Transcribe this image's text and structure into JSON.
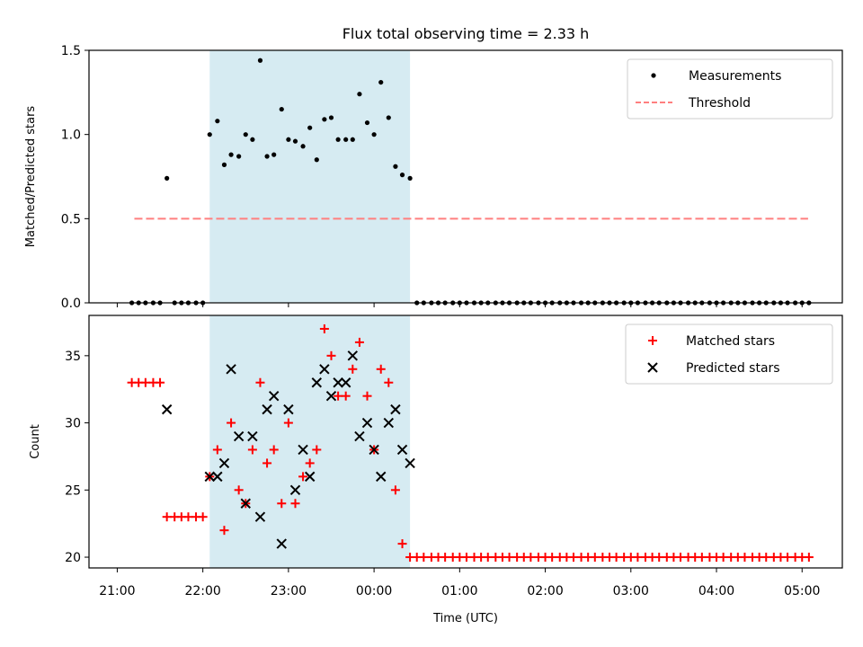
{
  "chart_data": [
    {
      "type": "scatter",
      "title": "Flux total observing time = 2.33 h",
      "xlabel": "",
      "ylabel": "Matched/Predicted stars",
      "xlim_hours": [
        20.67,
        29.47
      ],
      "ylim": [
        0,
        1.5
      ],
      "yticks": [
        0.0,
        0.5,
        1.0,
        1.5
      ],
      "ytick_labels": [
        "0.0",
        "0.5",
        "1.0",
        "1.5"
      ],
      "shaded_span_hours": [
        22.08,
        24.42
      ],
      "legend_position": "top-right",
      "threshold": {
        "name": "Threshold",
        "value": 0.5,
        "x_range_hours": [
          21.2,
          29.07
        ],
        "color": "#ff7f7f"
      },
      "series": [
        {
          "name": "Measurements",
          "color": "#000000",
          "x": [
            21.17,
            21.25,
            21.33,
            21.42,
            21.5,
            21.58,
            21.67,
            21.75,
            21.83,
            21.92,
            22.0,
            22.08,
            22.17,
            22.25,
            22.33,
            22.42,
            22.5,
            22.58,
            22.67,
            22.75,
            22.83,
            22.92,
            23.0,
            23.08,
            23.17,
            23.25,
            23.33,
            23.42,
            23.5,
            23.58,
            23.67,
            23.75,
            23.83,
            23.92,
            24.0,
            24.08,
            24.17,
            24.25,
            24.33,
            24.42,
            24.5,
            24.58,
            24.67,
            24.75,
            24.83,
            24.92,
            25.0,
            25.08,
            25.17,
            25.25,
            25.33,
            25.42,
            25.5,
            25.58,
            25.67,
            25.75,
            25.83,
            25.92,
            26.0,
            26.08,
            26.17,
            26.25,
            26.33,
            26.42,
            26.5,
            26.58,
            26.67,
            26.75,
            26.83,
            26.92,
            27.0,
            27.08,
            27.17,
            27.25,
            27.33,
            27.42,
            27.5,
            27.58,
            27.67,
            27.75,
            27.83,
            27.92,
            28.0,
            28.08,
            28.17,
            28.25,
            28.33,
            28.42,
            28.5,
            28.58,
            28.67,
            28.75,
            28.83,
            28.92,
            29.0,
            29.08
          ],
          "y": [
            0,
            0,
            0,
            0,
            0,
            0.74,
            0,
            0,
            0,
            0,
            0,
            1.0,
            1.08,
            0.82,
            0.88,
            0.87,
            1.0,
            0.97,
            1.44,
            0.87,
            0.88,
            1.15,
            0.97,
            0.96,
            0.93,
            1.04,
            0.85,
            1.09,
            1.1,
            0.97,
            0.97,
            0.97,
            1.24,
            1.07,
            1.0,
            1.31,
            1.1,
            0.81,
            0.76,
            0.74,
            0,
            0,
            0,
            0,
            0,
            0,
            0,
            0,
            0,
            0,
            0,
            0,
            0,
            0,
            0,
            0,
            0,
            0,
            0,
            0,
            0,
            0,
            0,
            0,
            0,
            0,
            0,
            0,
            0,
            0,
            0,
            0,
            0,
            0,
            0,
            0,
            0,
            0,
            0,
            0,
            0,
            0,
            0,
            0,
            0,
            0,
            0,
            0,
            0,
            0,
            0,
            0,
            0,
            0,
            0,
            0
          ]
        }
      ]
    },
    {
      "type": "scatter",
      "title": "",
      "xlabel": "Time (UTC)",
      "ylabel": "Count",
      "xlim_hours": [
        20.67,
        29.47
      ],
      "ylim": [
        19.2,
        38.0
      ],
      "yticks": [
        20,
        25,
        30,
        35
      ],
      "ytick_labels": [
        "20",
        "25",
        "30",
        "35"
      ],
      "xticks_hours": [
        21,
        22,
        23,
        24,
        25,
        26,
        27,
        28,
        29
      ],
      "xtick_labels": [
        "21:00",
        "22:00",
        "23:00",
        "00:00",
        "01:00",
        "02:00",
        "03:00",
        "04:00",
        "05:00"
      ],
      "shaded_span_hours": [
        22.08,
        24.42
      ],
      "legend_position": "top-right",
      "series": [
        {
          "name": "Matched stars",
          "color": "#ff0000",
          "marker": "plus",
          "x": [
            21.17,
            21.25,
            21.33,
            21.42,
            21.5,
            21.58,
            21.67,
            21.75,
            21.83,
            21.92,
            22.0,
            22.08,
            22.17,
            22.25,
            22.33,
            22.42,
            22.5,
            22.58,
            22.67,
            22.75,
            22.83,
            22.92,
            23.0,
            23.08,
            23.17,
            23.25,
            23.33,
            23.42,
            23.5,
            23.58,
            23.67,
            23.75,
            23.83,
            23.92,
            24.0,
            24.08,
            24.17,
            24.25,
            24.33,
            24.42,
            24.5,
            24.58,
            24.67,
            24.75,
            24.83,
            24.92,
            25.0,
            25.08,
            25.17,
            25.25,
            25.33,
            25.42,
            25.5,
            25.58,
            25.67,
            25.75,
            25.83,
            25.92,
            26.0,
            26.08,
            26.17,
            26.25,
            26.33,
            26.42,
            26.5,
            26.58,
            26.67,
            26.75,
            26.83,
            26.92,
            27.0,
            27.08,
            27.17,
            27.25,
            27.33,
            27.42,
            27.5,
            27.58,
            27.67,
            27.75,
            27.83,
            27.92,
            28.0,
            28.08,
            28.17,
            28.25,
            28.33,
            28.42,
            28.5,
            28.58,
            28.67,
            28.75,
            28.83,
            28.92,
            29.0,
            29.08
          ],
          "y": [
            33,
            33,
            33,
            33,
            33,
            23,
            23,
            23,
            23,
            23,
            23,
            26,
            28,
            22,
            30,
            25,
            24,
            28,
            33,
            27,
            28,
            24,
            30,
            24,
            26,
            27,
            28,
            37,
            35,
            32,
            32,
            34,
            36,
            32,
            28,
            34,
            33,
            25,
            21,
            20,
            20,
            20,
            20,
            20,
            20,
            20,
            20,
            20,
            20,
            20,
            20,
            20,
            20,
            20,
            20,
            20,
            20,
            20,
            20,
            20,
            20,
            20,
            20,
            20,
            20,
            20,
            20,
            20,
            20,
            20,
            20,
            20,
            20,
            20,
            20,
            20,
            20,
            20,
            20,
            20,
            20,
            20,
            20,
            20,
            20,
            20,
            20,
            20,
            20,
            20,
            20,
            20,
            20,
            20,
            20,
            20
          ]
        },
        {
          "name": "Predicted stars",
          "color": "#000000",
          "marker": "x",
          "x": [
            21.58,
            22.08,
            22.17,
            22.25,
            22.33,
            22.42,
            22.5,
            22.58,
            22.67,
            22.75,
            22.83,
            22.92,
            23.0,
            23.08,
            23.17,
            23.25,
            23.33,
            23.42,
            23.5,
            23.58,
            23.67,
            23.75,
            23.83,
            23.92,
            24.0,
            24.08,
            24.17,
            24.25,
            24.33,
            24.42
          ],
          "y": [
            31,
            26,
            26,
            27,
            34,
            29,
            24,
            29,
            23,
            31,
            32,
            21,
            31,
            25,
            28,
            26,
            33,
            34,
            32,
            33,
            33,
            35,
            29,
            30,
            28,
            26,
            30,
            31,
            28,
            27
          ]
        }
      ]
    }
  ]
}
